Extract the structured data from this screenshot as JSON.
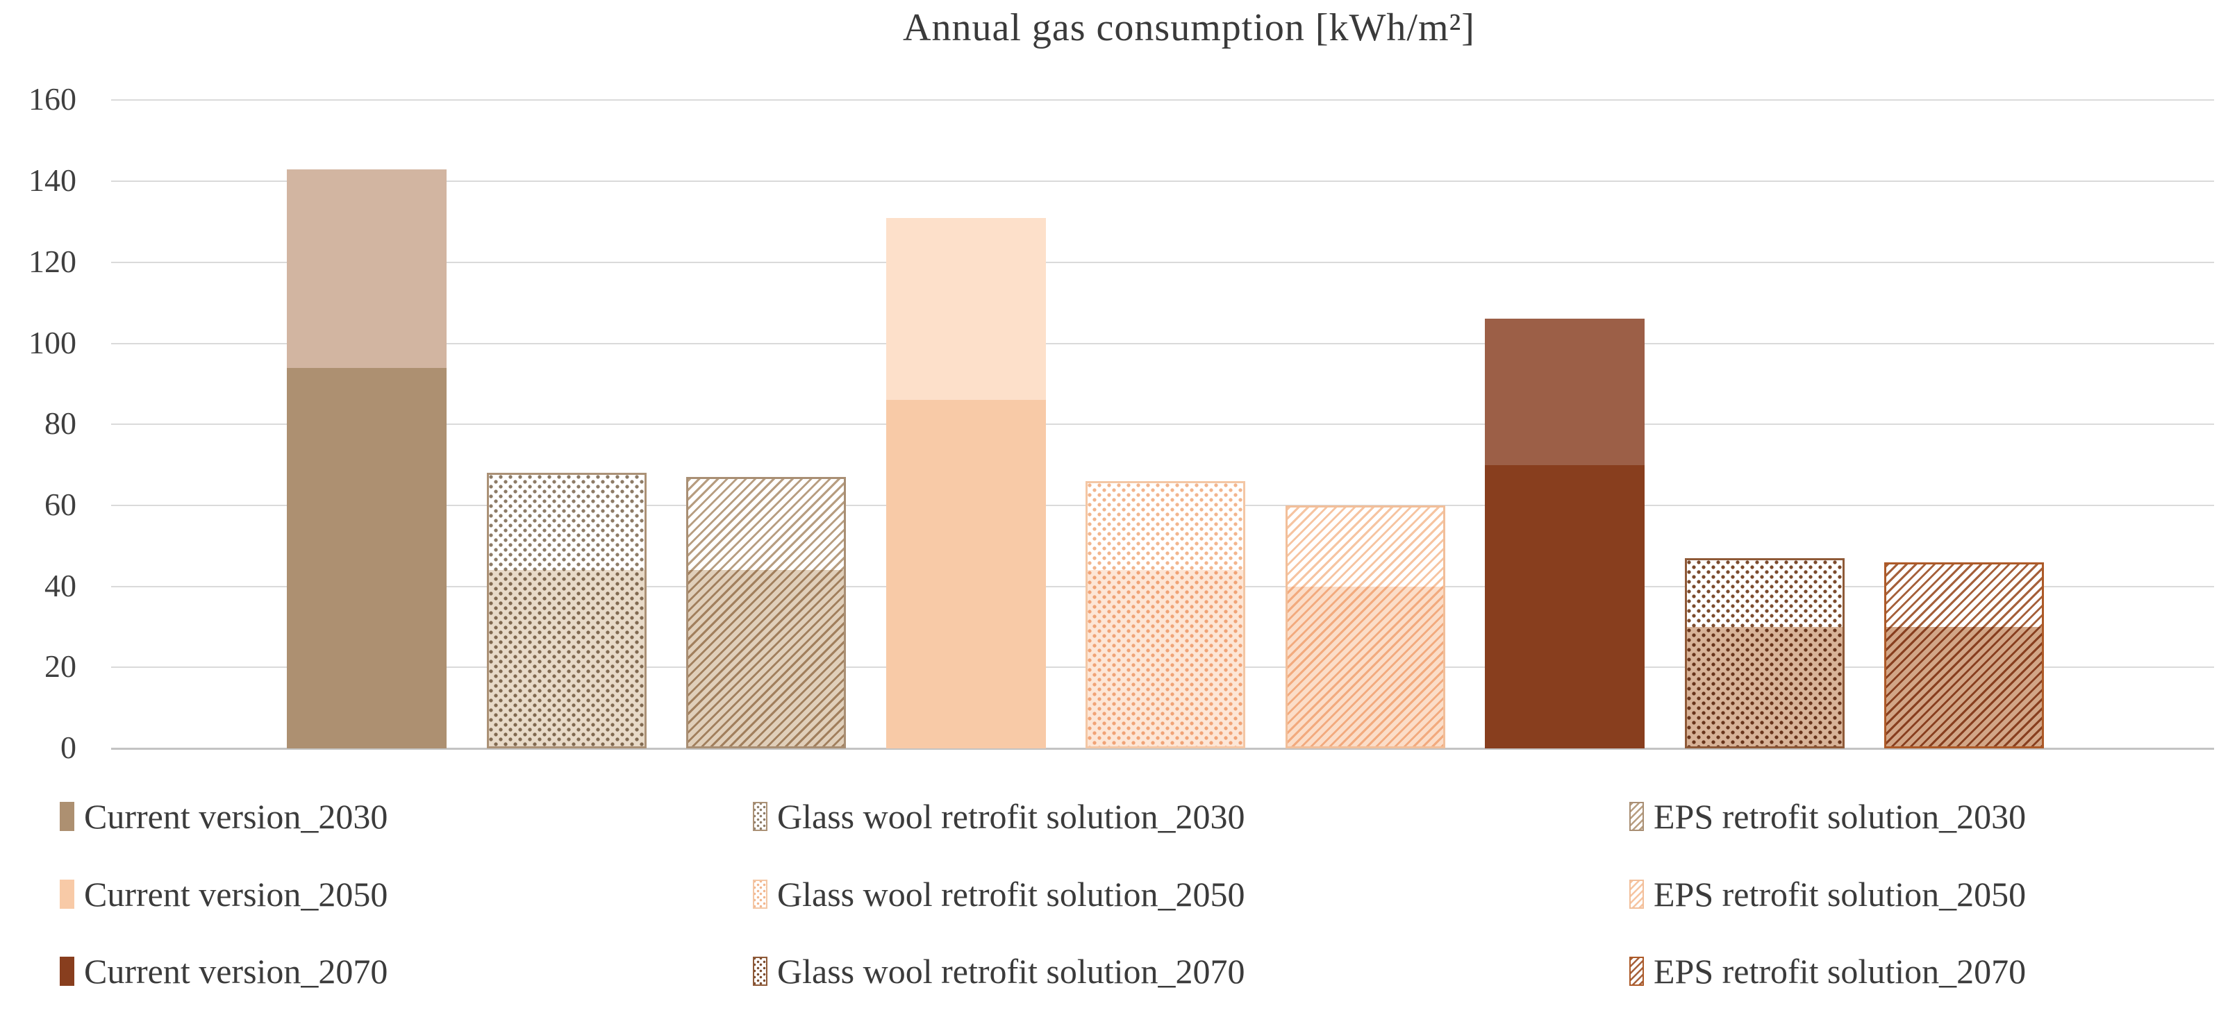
{
  "chart_data": {
    "type": "bar",
    "title": "Annual gas consumption [kWh/m²]",
    "xlabel": "",
    "ylabel": "",
    "ylim": [
      0,
      160
    ],
    "yticks": [
      0,
      20,
      40,
      60,
      80,
      100,
      120,
      140,
      160
    ],
    "grid": true,
    "legend_position": "bottom",
    "bar_description": "Each bar shows a full-height lighter portion (value_total) and a darker shaded lower segment (value_lower_segment). Dotted bars = Glass wool retrofit, diagonally hatched bars = EPS retrofit, solid bars = Current version.",
    "bars": [
      {
        "label": "Current version_2030",
        "category": "Current version",
        "year": "2030",
        "style": "solid",
        "value_total": 143,
        "value_lower_segment": 94,
        "color_upper": "#d2b5a1",
        "color_lower": "#ad9071"
      },
      {
        "label": "Glass wool retrofit solution_2030",
        "category": "Glass wool retrofit solution",
        "year": "2030",
        "style": "dotted",
        "value_total": 68,
        "value_lower_segment": 44,
        "pattern_color": "#8d7b66",
        "border_color": "#ab9176",
        "lower_tint": "#e8dac8"
      },
      {
        "label": "EPS retrofit solution_2030",
        "category": "EPS retrofit solution",
        "year": "2030",
        "style": "hatched",
        "value_total": 67,
        "value_lower_segment": 44,
        "pattern_color": "#b79d80",
        "border_color": "#a98f74",
        "lower_tint": "#e0cfba"
      },
      {
        "label": "Current version_2050",
        "category": "Current version",
        "year": "2050",
        "style": "solid",
        "value_total": 131,
        "value_lower_segment": 86,
        "color_upper": "#fde0ca",
        "color_lower": "#f8caa7"
      },
      {
        "label": "Glass wool retrofit solution_2050",
        "category": "Glass wool retrofit solution",
        "year": "2050",
        "style": "dotted",
        "value_total": 66,
        "value_lower_segment": 44,
        "pattern_color": "#f2b58d",
        "border_color": "#f4c7a5",
        "lower_tint": "#fde6d6"
      },
      {
        "label": "EPS retrofit solution_2050",
        "category": "EPS retrofit solution",
        "year": "2050",
        "style": "hatched",
        "value_total": 60,
        "value_lower_segment": 40,
        "pattern_color": "#f6c4a1",
        "border_color": "#f2bf9a",
        "lower_tint": "#fbddc8"
      },
      {
        "label": "Current version_2070",
        "category": "Current version",
        "year": "2070",
        "style": "solid",
        "value_total": 106,
        "value_lower_segment": 70,
        "color_upper": "#9c5f47",
        "color_lower": "#883e1e"
      },
      {
        "label": "Glass wool retrofit solution_2070",
        "category": "Glass wool retrofit solution",
        "year": "2070",
        "style": "dotted",
        "value_total": 47,
        "value_lower_segment": 30,
        "pattern_color": "#7b4a2c",
        "border_color": "#8f5a38",
        "lower_tint": "#d8b398"
      },
      {
        "label": "EPS retrofit solution_2070",
        "category": "EPS retrofit solution",
        "year": "2070",
        "style": "hatched",
        "value_total": 46,
        "value_lower_segment": 30,
        "pattern_color": "#a5603a",
        "border_color": "#ad5a28",
        "lower_tint": "#d2a687"
      }
    ],
    "legend": {
      "entries_by_column": [
        [
          0,
          3,
          6
        ],
        [
          1,
          4,
          7
        ],
        [
          2,
          5,
          8
        ]
      ]
    }
  }
}
